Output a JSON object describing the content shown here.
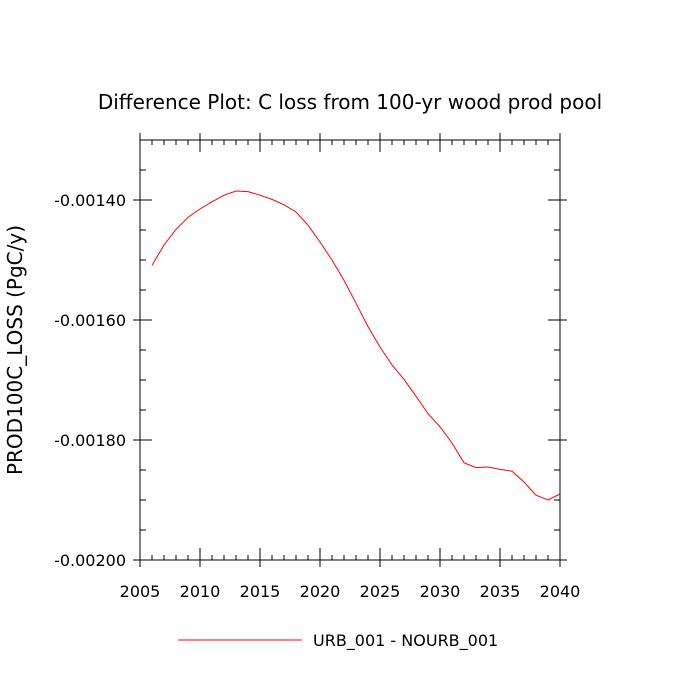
{
  "chart_data": {
    "type": "line",
    "title": "Difference Plot: C loss from 100-yr wood prod pool",
    "ylabel": "PROD100C_LOSS  (PgC/y)",
    "xlabel": "",
    "xlim": [
      2005,
      2040
    ],
    "ylim": [
      -0.002,
      -0.0013
    ],
    "x_ticks": [
      2005,
      2010,
      2015,
      2020,
      2025,
      2030,
      2035,
      2040
    ],
    "x_tick_labels": [
      "2005",
      "2010",
      "2015",
      "2020",
      "2025",
      "2030",
      "2035",
      "2040"
    ],
    "y_ticks": [
      -0.002,
      -0.0018,
      -0.0016,
      -0.0014
    ],
    "y_tick_labels": [
      "-0.00200",
      "-0.00180",
      "-0.00160",
      "-0.00140"
    ],
    "grid": false,
    "legend_position": "bottom-center",
    "series": [
      {
        "name": "URB_001 - NOURB_001",
        "color": "#ff0000",
        "x": [
          2006,
          2007,
          2008,
          2009,
          2010,
          2011,
          2012,
          2013,
          2014,
          2015,
          2016,
          2017,
          2018,
          2019,
          2020,
          2021,
          2022,
          2023,
          2024,
          2025,
          2026,
          2027,
          2028,
          2029,
          2030,
          2031,
          2032,
          2033,
          2034,
          2035,
          2036,
          2037,
          2038,
          2039,
          2040
        ],
        "y": [
          -0.001509,
          -0.001475,
          -0.001449,
          -0.001429,
          -0.001415,
          -0.001403,
          -0.001392,
          -0.001385,
          -0.001386,
          -0.001392,
          -0.001399,
          -0.001408,
          -0.00142,
          -0.001442,
          -0.00147,
          -0.0015,
          -0.001534,
          -0.001572,
          -0.001611,
          -0.001645,
          -0.001675,
          -0.001699,
          -0.001727,
          -0.001756,
          -0.001778,
          -0.001805,
          -0.001838,
          -0.001846,
          -0.001845,
          -0.001849,
          -0.001852,
          -0.00187,
          -0.001892,
          -0.0019,
          -0.00189
        ]
      }
    ]
  }
}
